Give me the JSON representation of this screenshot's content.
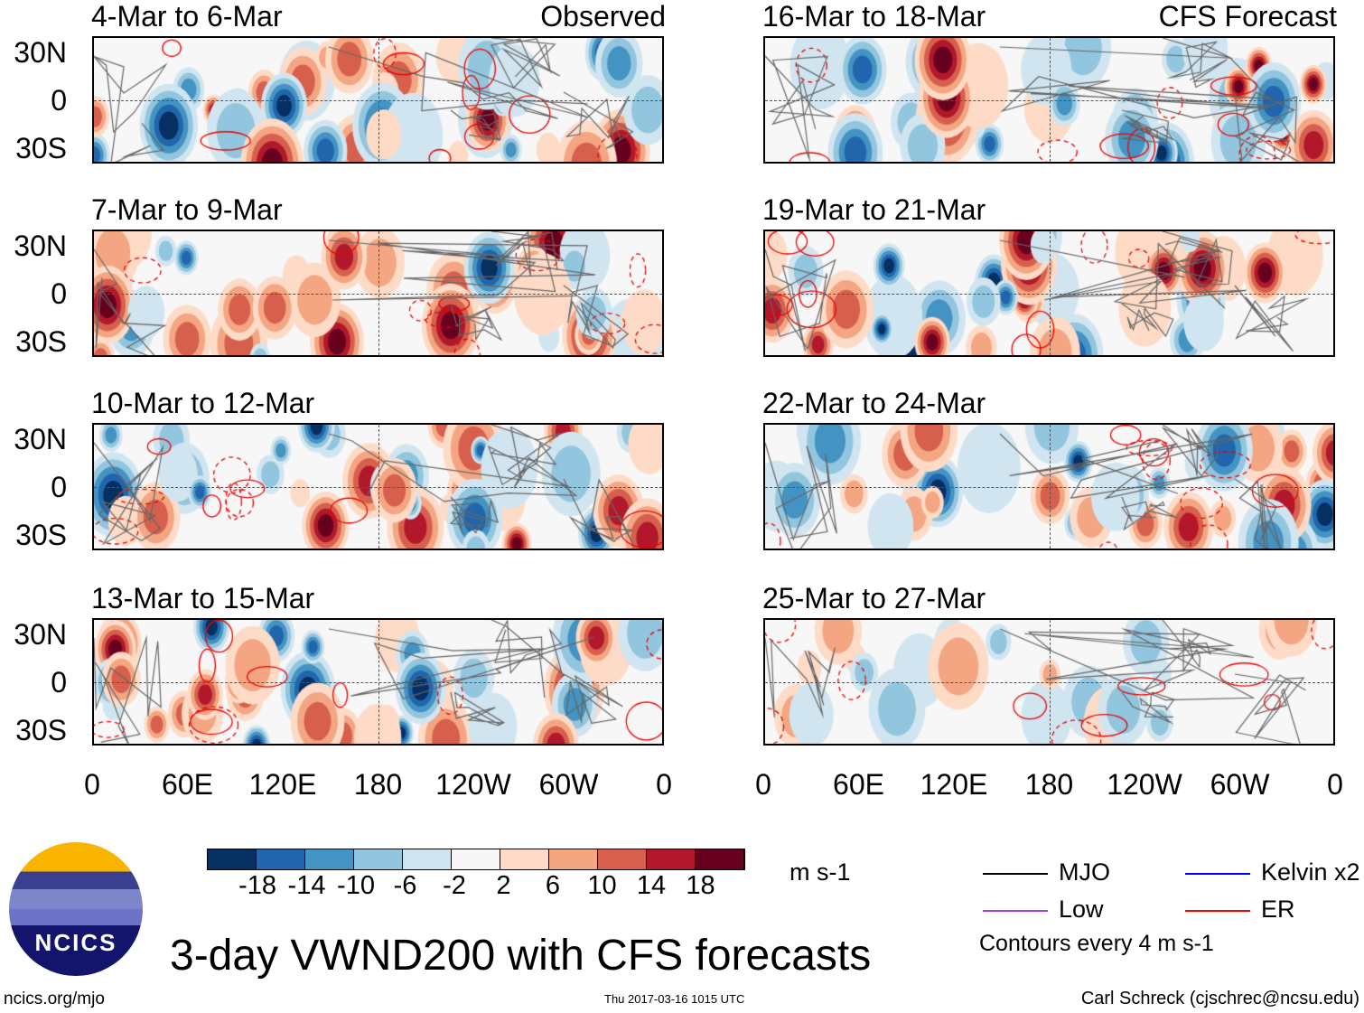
{
  "headers": {
    "observed": "Observed",
    "forecast": "CFS Forecast"
  },
  "observed_panels": [
    {
      "title": "4-Mar to 6-Mar"
    },
    {
      "title": "7-Mar to 9-Mar"
    },
    {
      "title": "10-Mar to 12-Mar"
    },
    {
      "title": "13-Mar to 15-Mar"
    }
  ],
  "forecast_panels": [
    {
      "title": "16-Mar to 18-Mar"
    },
    {
      "title": "19-Mar to 21-Mar"
    },
    {
      "title": "22-Mar to 24-Mar"
    },
    {
      "title": "25-Mar to 27-Mar"
    }
  ],
  "lat_labels": [
    "30N",
    "0",
    "30S"
  ],
  "lon_labels": [
    "0",
    "60E",
    "120E",
    "180",
    "120W",
    "60W",
    "0"
  ],
  "colorbar": {
    "labels": [
      "-18",
      "-14",
      "-10",
      "-6",
      "-2",
      "2",
      "6",
      "10",
      "14",
      "18"
    ],
    "colors": [
      "#053061",
      "#2166ac",
      "#4393c3",
      "#92c5de",
      "#d1e5f0",
      "#f7f7f7",
      "#fddbc7",
      "#f4a582",
      "#d6604d",
      "#b2182b",
      "#67001f"
    ],
    "units": "m s-1"
  },
  "legend": {
    "items": [
      {
        "label": "MJO",
        "color": "#000000"
      },
      {
        "label": "Kelvin x2",
        "color": "#0000ff"
      },
      {
        "label": "Low",
        "color": "#a040e0"
      },
      {
        "label": "ER",
        "color": "#ff0000"
      }
    ],
    "contours": "Contours every 4 m s-1"
  },
  "title": "3-day VWND200 with CFS forecasts",
  "logo": {
    "text": "NCICS"
  },
  "footer": {
    "url": "ncics.org/mjo",
    "timestamp": "Thu 2017-03-16 1015 UTC",
    "author": "Carl Schreck (cjschrec@ncsu.edu)"
  }
}
